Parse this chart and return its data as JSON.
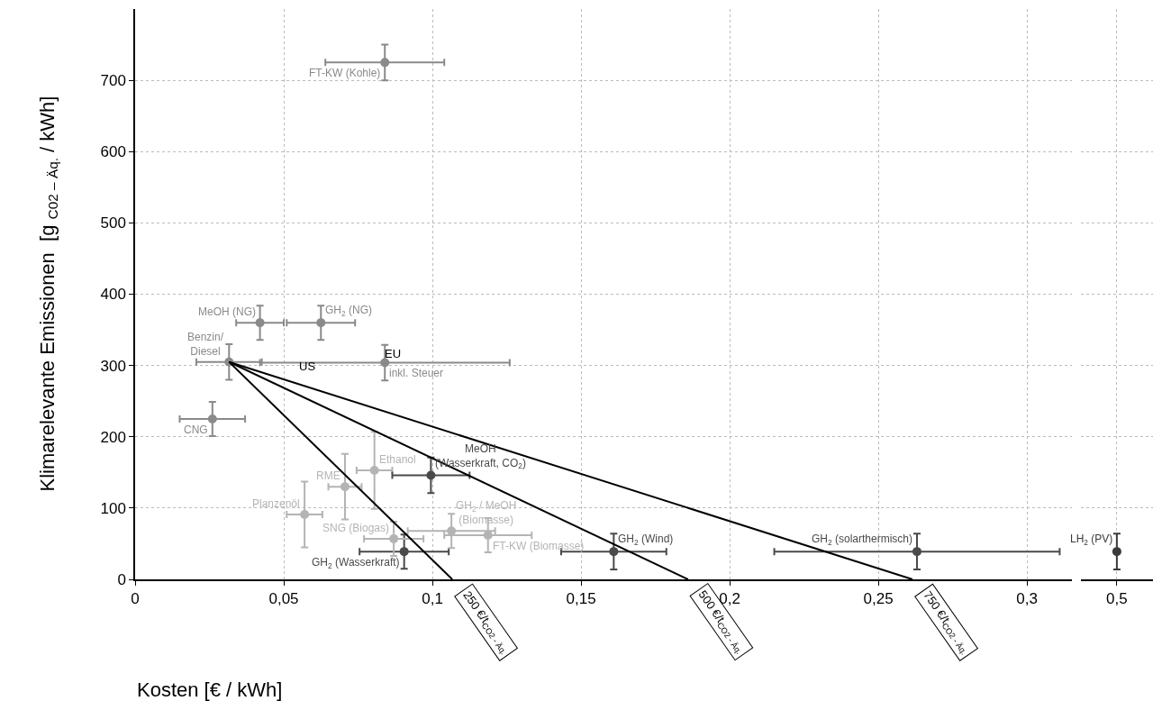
{
  "chart_data": [
    {
      "type": "scatter",
      "xlabel": "Kosten [€ / kWh]",
      "ylabel": "Klimarelevante Emissionen  [g $_{C02 – Äq.}$ / kWh]",
      "marker": "circle",
      "xlim": [
        0,
        0.315
      ],
      "xticks": [
        0,
        {
          "value": 0.05,
          "label": "0,05"
        },
        {
          "value": 0.1,
          "label": "0,1"
        },
        {
          "value": 0.15,
          "label": "0,15"
        },
        {
          "value": 0.2,
          "label": "0,2"
        },
        {
          "value": 0.25,
          "label": "0,25"
        },
        {
          "value": 0.3,
          "label": "0,3"
        }
      ],
      "ylim": [
        0,
        800
      ],
      "yticks": [
        0,
        100,
        200,
        300,
        400,
        500,
        600,
        700
      ],
      "grid": true,
      "series": [
        {
          "type": "scatter",
          "name": "FT-KW (Kohle)",
          "color": "#8a8a8a",
          "x": [
            0.084
          ],
          "values": [
            725
          ],
          "xerrors": [
            0.02
          ],
          "errors": [
            25
          ]
        },
        {
          "type": "scatter",
          "name": "MeOH (NG)",
          "color": "#8a8a8a",
          "x": [
            0.042
          ],
          "values": [
            360
          ],
          "xerrors": [
            0.008
          ],
          "errors": [
            24
          ]
        },
        {
          "type": "scatter",
          "name": "GH$_{2}$ (NG)",
          "color": "#8a8a8a",
          "x": [
            0.0625
          ],
          "values": [
            360
          ],
          "xerrors": [
            0.0115
          ],
          "errors": [
            24
          ]
        },
        {
          "type": "scatter",
          "name": "Benzin/\nDiesel",
          "color": "#8a8a8a",
          "x": [
            0.0316
          ],
          "values": [
            305
          ],
          "xerrors": [
            0.011
          ],
          "errors": [
            25
          ]
        },
        {
          "type": "scatter",
          "name": "inkl. Steuer",
          "color": "#8a8a8a",
          "x": [
            0.084
          ],
          "values": [
            304
          ],
          "xerrors": [
            0.042
          ],
          "errors": [
            25
          ]
        },
        {
          "type": "scatter",
          "name": "CNG",
          "color": "#8a8a8a",
          "x": [
            0.026
          ],
          "values": [
            225
          ],
          "xerrors": [
            0.011
          ],
          "errors": [
            24
          ]
        },
        {
          "type": "scatter",
          "name": "Ethanol",
          "color": "#b4b4b4",
          "x": [
            0.0805
          ],
          "values": [
            153
          ],
          "xerrors": [
            0.006
          ],
          "errors": [
            54
          ]
        },
        {
          "type": "scatter",
          "name": "RME",
          "color": "#b4b4b4",
          "x": [
            0.0706
          ],
          "values": [
            130
          ],
          "xerrors": [
            0.0056
          ],
          "errors": [
            46
          ]
        },
        {
          "type": "scatter",
          "name": "Planzenöl",
          "color": "#b4b4b4",
          "x": [
            0.057
          ],
          "values": [
            91
          ],
          "xerrors": [
            0.006
          ],
          "errors": [
            46
          ]
        },
        {
          "type": "scatter",
          "name": "MeOH\n(Wasserkraft, CO$_{2}$)",
          "color": "#4a4a4a",
          "x": [
            0.0995
          ],
          "values": [
            146
          ],
          "xerrors": [
            0.013
          ],
          "errors": [
            25
          ]
        },
        {
          "type": "scatter",
          "name": "GH$_{2}$ (Wasserkraft)",
          "color": "#4a4a4a",
          "x": [
            0.0905
          ],
          "values": [
            39
          ],
          "xerrors": [
            0.015
          ],
          "errors": [
            24
          ]
        },
        {
          "type": "scatter",
          "name": "SNG (Biogas)",
          "color": "#b4b4b4",
          "x": [
            0.087
          ],
          "values": [
            57
          ],
          "xerrors": [
            0.01
          ],
          "errors": [
            24
          ]
        },
        {
          "type": "scatter",
          "name": "GH$_{2}$ / MeOH\n(Biomasse)",
          "color": "#b4b4b4",
          "x": [
            0.1064
          ],
          "values": [
            68
          ],
          "xerrors": [
            0.0147
          ],
          "errors": [
            24
          ]
        },
        {
          "type": "scatter",
          "name": "FT-KW (Biomasse)",
          "color": "#b4b4b4",
          "x": [
            0.1187
          ],
          "values": [
            62
          ],
          "xerrors": [
            0.0147
          ],
          "errors": [
            24
          ]
        },
        {
          "type": "scatter",
          "name": "GH$_{2}$ (Wind)",
          "color": "#4a4a4a",
          "x": [
            0.161
          ],
          "values": [
            39
          ],
          "xerrors": [
            0.0177
          ],
          "errors": [
            25
          ]
        },
        {
          "type": "scatter",
          "name": "GH$_{2}$ (solarthermisch)",
          "color": "#4a4a4a",
          "x": [
            0.263
          ],
          "values": [
            39
          ],
          "xerrors": [
            0.048
          ],
          "errors": [
            25
          ]
        },
        {
          "type": "line",
          "marker": "none",
          "name": "250 €/t$_{CO2 - Äq.}$",
          "color": "#000000",
          "x": [
            0.0316,
            0.1067
          ],
          "values": [
            305,
            0
          ]
        },
        {
          "type": "line",
          "marker": "none",
          "name": "500 €/t$_{CO2 - Äq.}$",
          "color": "#000000",
          "x": [
            0.0316,
            0.186
          ],
          "values": [
            305,
            0
          ]
        },
        {
          "type": "line",
          "marker": "none",
          "name": "750 €/t$_{CO2 - Äq.}$",
          "color": "#000000",
          "x": [
            0.0316,
            0.2615
          ],
          "values": [
            305,
            0
          ]
        }
      ],
      "annotations": [
        "US",
        "EU"
      ]
    },
    {
      "type": "scatter",
      "categories": [
        "0,5"
      ],
      "ylim": [
        0,
        800
      ],
      "yticks": [
        0,
        100,
        200,
        300,
        400,
        500,
        600,
        700
      ],
      "grid": true,
      "tick_labels": "x",
      "marker": "circle",
      "series": [
        {
          "type": "scatter",
          "name": "LH$_{2}$ (PV)",
          "color": "#3a3a3a",
          "values": [
            39
          ],
          "errors": [
            25
          ]
        }
      ]
    }
  ]
}
